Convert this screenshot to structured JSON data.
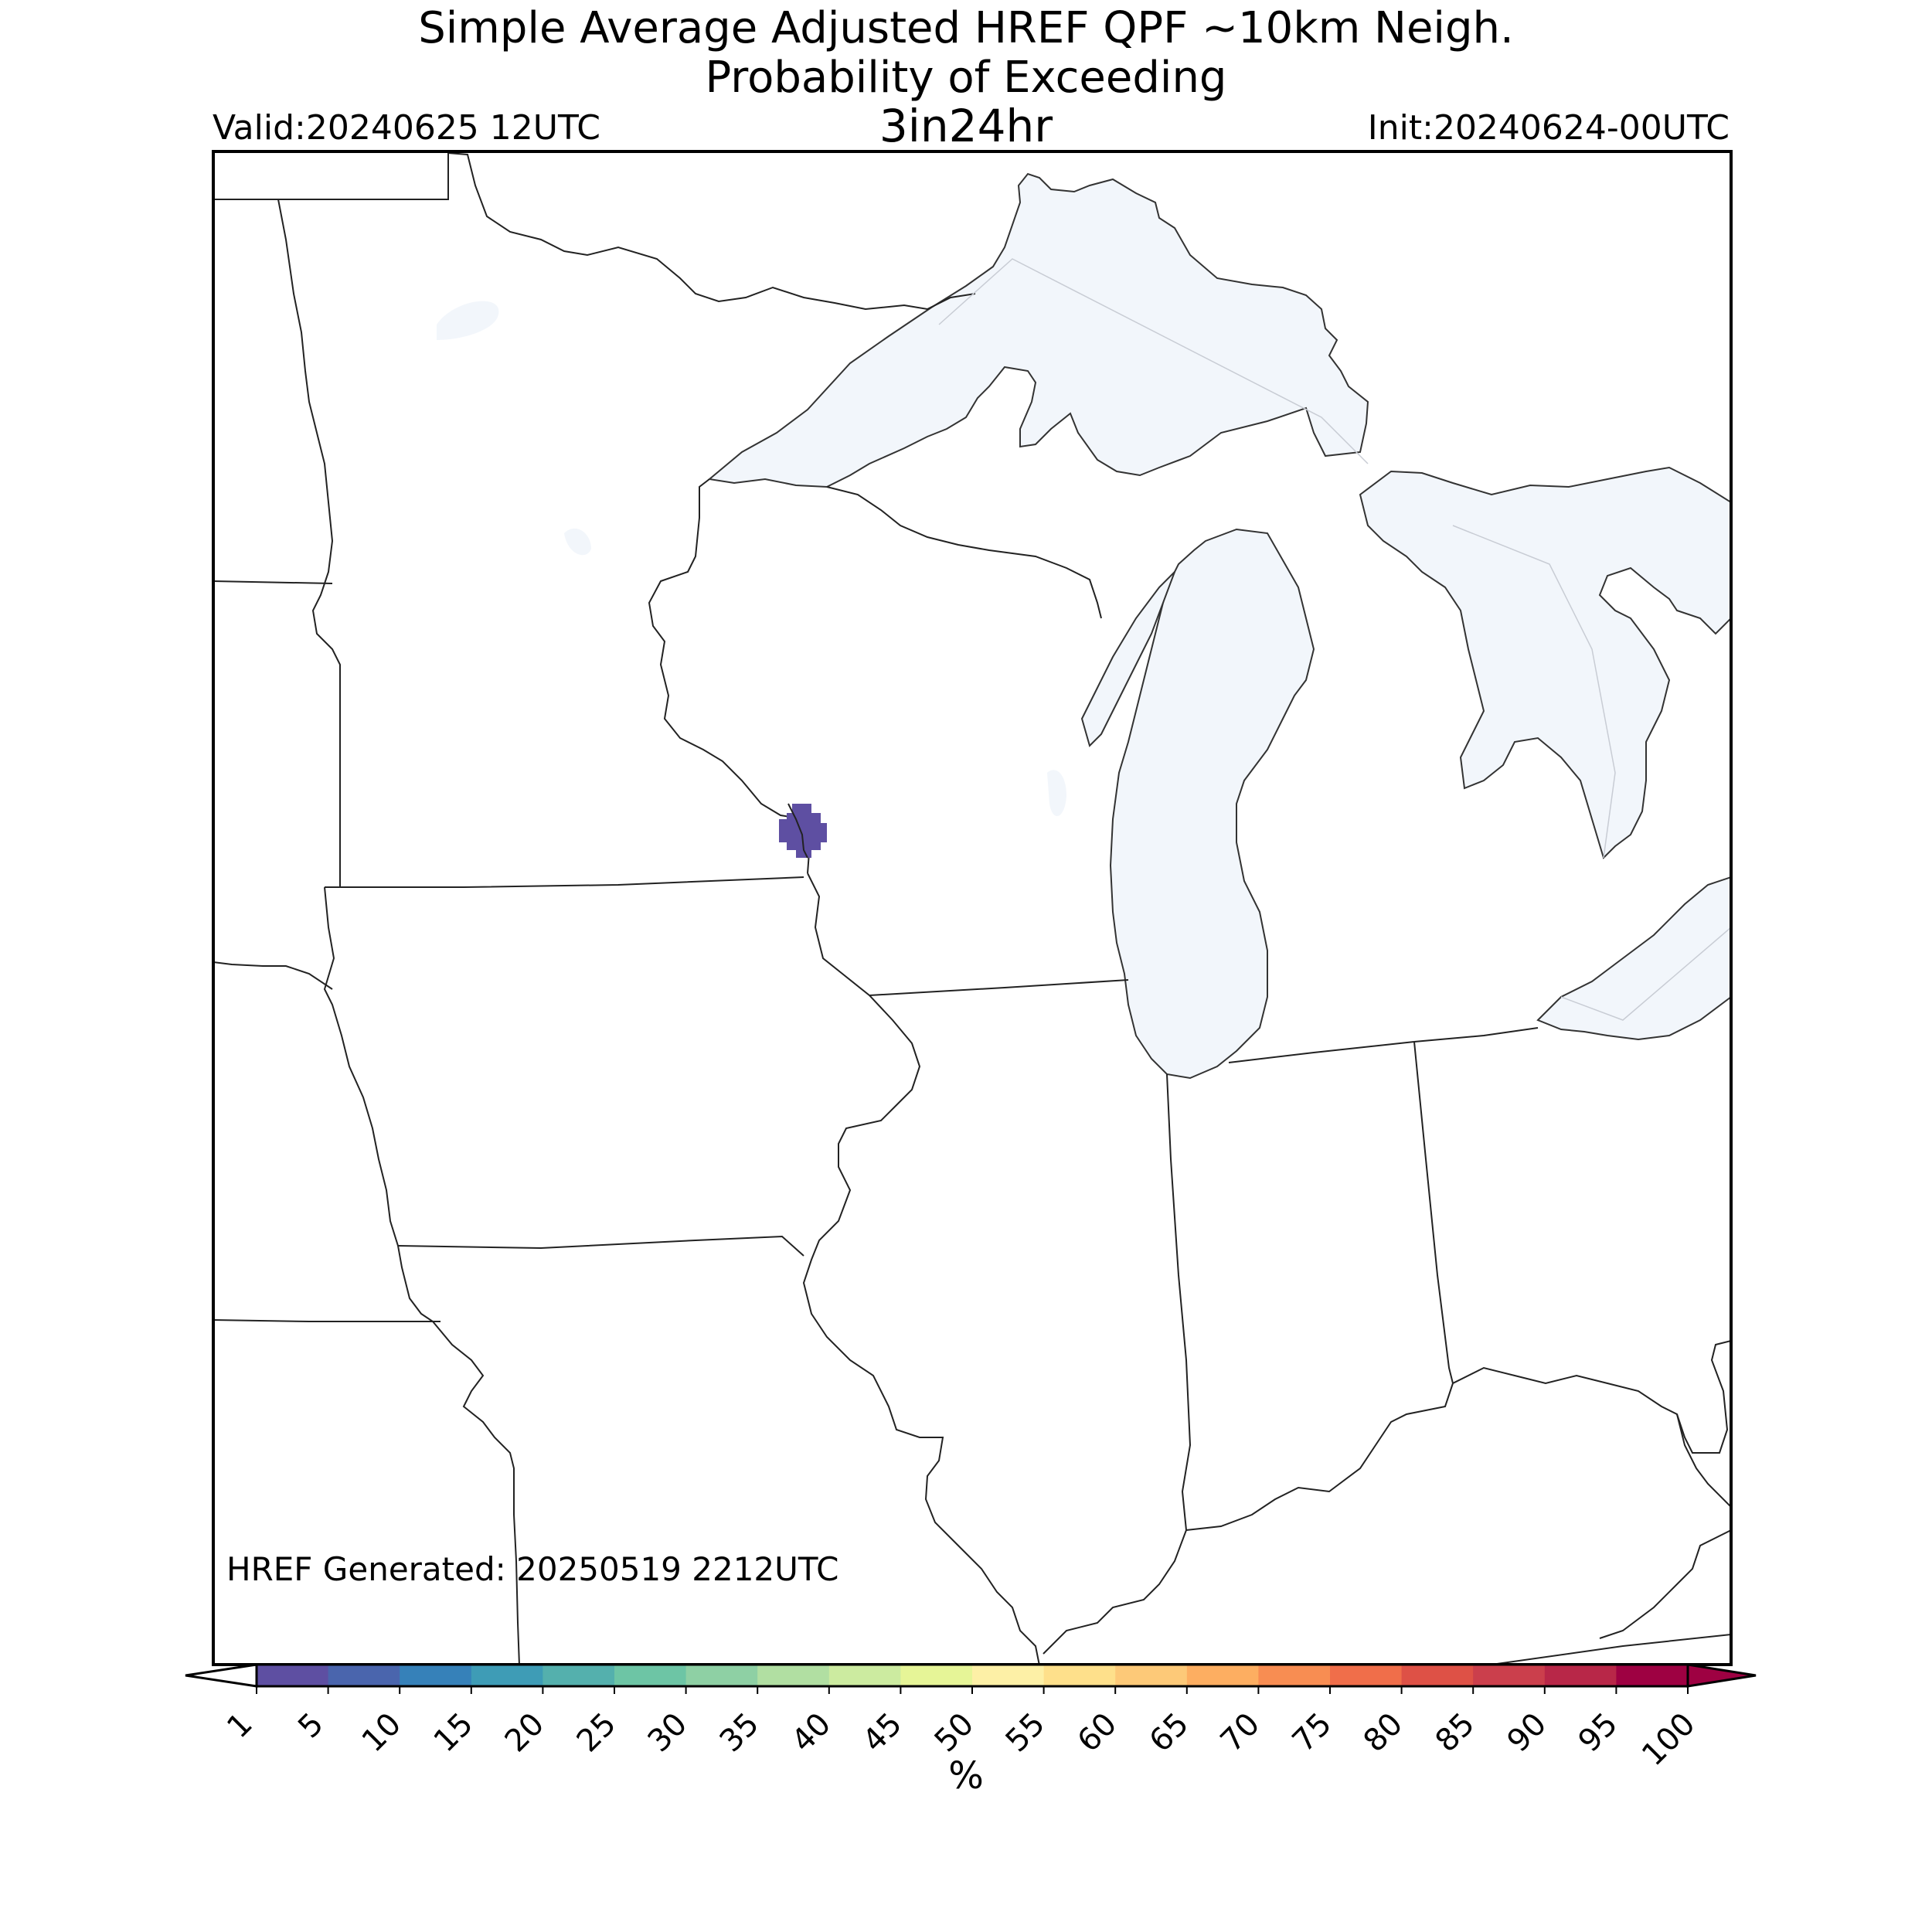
{
  "title": {
    "line1": "Simple Average Adjusted HREF QPF ~10km Neigh.",
    "line2": "Probability of Exceeding",
    "line3": "3in24hr"
  },
  "valid_label": "Valid:20240625 12UTC",
  "init_label": "Init:20240624-00UTC",
  "generated_label": "HREF Generated: 20250519 2212UTC",
  "colorbar": {
    "unit": "%",
    "ticks": [
      "1",
      "5",
      "10",
      "15",
      "20",
      "25",
      "30",
      "35",
      "40",
      "45",
      "50",
      "55",
      "60",
      "65",
      "70",
      "75",
      "80",
      "85",
      "90",
      "95",
      "100"
    ],
    "colors": [
      "#5e4fa2",
      "#4a65ad",
      "#3681b9",
      "#3e9cb6",
      "#54b0ad",
      "#6dc5a5",
      "#8ed0a4",
      "#b1dfa2",
      "#cceba0",
      "#e6f597",
      "#fdf0a6",
      "#fee08b",
      "#fdc978",
      "#fdae61",
      "#f88d52",
      "#f06e4a",
      "#de5146",
      "#cb3f4c",
      "#b82748",
      "#9e0142"
    ],
    "under_color": "#ffffff",
    "over_color": "#9e0142"
  },
  "map_colors": {
    "water": "#f2f6fb",
    "water_dark": "#e6edf5",
    "border": "#222222",
    "probability_blob": "#5e4fa2"
  }
}
